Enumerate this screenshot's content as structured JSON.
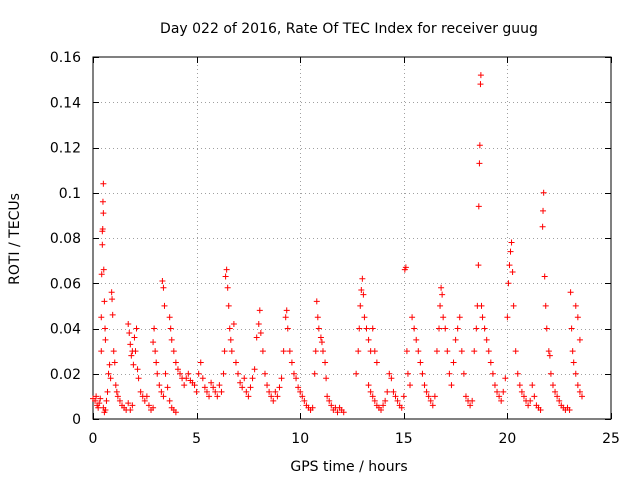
{
  "chart_data": {
    "type": "scatter",
    "title": "Day 022 of 2016, Rate Of TEC Index for receiver guug",
    "xlabel": "GPS time / hours",
    "ylabel": "ROTI / TECUs",
    "xlim": [
      0,
      25
    ],
    "ylim": [
      0,
      0.16
    ],
    "xticks": [
      0,
      5,
      10,
      15,
      20,
      25
    ],
    "xtick_labels": [
      "0",
      "5",
      "10",
      "15",
      "20",
      "25"
    ],
    "yticks": [
      0,
      0.02,
      0.04,
      0.06,
      0.08,
      0.1,
      0.12,
      0.14,
      0.16
    ],
    "ytick_labels": [
      "0",
      "0.02",
      "0.04",
      "0.06",
      "0.08",
      "0.1",
      "0.12",
      "0.14",
      "0.16"
    ],
    "grid": true,
    "marker": "+",
    "color": "#ff0000",
    "series": [
      {
        "name": "ROTI",
        "points": [
          [
            0.0,
            0.009
          ],
          [
            0.1,
            0.008
          ],
          [
            0.15,
            0.01
          ],
          [
            0.2,
            0.006
          ],
          [
            0.25,
            0.005
          ],
          [
            0.3,
            0.007
          ],
          [
            0.35,
            0.009
          ],
          [
            0.4,
            0.03
          ],
          [
            0.4,
            0.045
          ],
          [
            0.42,
            0.064
          ],
          [
            0.45,
            0.077
          ],
          [
            0.45,
            0.083
          ],
          [
            0.47,
            0.084
          ],
          [
            0.48,
            0.096
          ],
          [
            0.5,
            0.104
          ],
          [
            0.5,
            0.091
          ],
          [
            0.52,
            0.066
          ],
          [
            0.55,
            0.052
          ],
          [
            0.58,
            0.04
          ],
          [
            0.6,
            0.035
          ],
          [
            0.5,
            0.005
          ],
          [
            0.55,
            0.003
          ],
          [
            0.6,
            0.004
          ],
          [
            0.65,
            0.008
          ],
          [
            0.7,
            0.012
          ],
          [
            0.75,
            0.02
          ],
          [
            0.8,
            0.024
          ],
          [
            0.85,
            0.018
          ],
          [
            0.9,
            0.056
          ],
          [
            0.92,
            0.053
          ],
          [
            0.95,
            0.046
          ],
          [
            1.0,
            0.03
          ],
          [
            1.05,
            0.025
          ],
          [
            1.1,
            0.015
          ],
          [
            1.15,
            0.012
          ],
          [
            1.2,
            0.01
          ],
          [
            1.3,
            0.008
          ],
          [
            1.4,
            0.006
          ],
          [
            1.5,
            0.005
          ],
          [
            1.6,
            0.004
          ],
          [
            1.7,
            0.007
          ],
          [
            1.8,
            0.004
          ],
          [
            1.9,
            0.006
          ],
          [
            1.7,
            0.042
          ],
          [
            1.75,
            0.038
          ],
          [
            1.8,
            0.033
          ],
          [
            1.85,
            0.028
          ],
          [
            1.9,
            0.03
          ],
          [
            1.95,
            0.024
          ],
          [
            2.0,
            0.036
          ],
          [
            2.05,
            0.03
          ],
          [
            2.1,
            0.04
          ],
          [
            2.15,
            0.022
          ],
          [
            2.2,
            0.018
          ],
          [
            2.3,
            0.012
          ],
          [
            2.4,
            0.01
          ],
          [
            2.5,
            0.008
          ],
          [
            2.6,
            0.01
          ],
          [
            2.7,
            0.006
          ],
          [
            2.8,
            0.004
          ],
          [
            2.9,
            0.005
          ],
          [
            2.9,
            0.034
          ],
          [
            2.95,
            0.04
          ],
          [
            3.0,
            0.03
          ],
          [
            3.05,
            0.025
          ],
          [
            3.1,
            0.02
          ],
          [
            3.2,
            0.015
          ],
          [
            3.3,
            0.012
          ],
          [
            3.4,
            0.01
          ],
          [
            3.35,
            0.061
          ],
          [
            3.4,
            0.058
          ],
          [
            3.45,
            0.05
          ],
          [
            3.5,
            0.02
          ],
          [
            3.6,
            0.014
          ],
          [
            3.7,
            0.008
          ],
          [
            3.8,
            0.005
          ],
          [
            3.9,
            0.004
          ],
          [
            4.0,
            0.003
          ],
          [
            3.7,
            0.045
          ],
          [
            3.75,
            0.04
          ],
          [
            3.8,
            0.035
          ],
          [
            3.9,
            0.03
          ],
          [
            4.0,
            0.025
          ],
          [
            4.1,
            0.022
          ],
          [
            4.2,
            0.02
          ],
          [
            4.3,
            0.018
          ],
          [
            4.4,
            0.015
          ],
          [
            4.5,
            0.018
          ],
          [
            4.6,
            0.02
          ],
          [
            4.7,
            0.017
          ],
          [
            4.8,
            0.016
          ],
          [
            4.9,
            0.015
          ],
          [
            5.0,
            0.012
          ],
          [
            5.1,
            0.02
          ],
          [
            5.2,
            0.025
          ],
          [
            5.3,
            0.018
          ],
          [
            5.4,
            0.014
          ],
          [
            5.5,
            0.012
          ],
          [
            5.6,
            0.01
          ],
          [
            5.7,
            0.016
          ],
          [
            5.8,
            0.014
          ],
          [
            5.9,
            0.012
          ],
          [
            6.0,
            0.01
          ],
          [
            6.1,
            0.015
          ],
          [
            6.2,
            0.012
          ],
          [
            6.3,
            0.02
          ],
          [
            6.35,
            0.03
          ],
          [
            6.4,
            0.063
          ],
          [
            6.45,
            0.066
          ],
          [
            6.5,
            0.058
          ],
          [
            6.55,
            0.05
          ],
          [
            6.6,
            0.04
          ],
          [
            6.65,
            0.035
          ],
          [
            6.7,
            0.03
          ],
          [
            6.8,
            0.042
          ],
          [
            6.9,
            0.025
          ],
          [
            7.0,
            0.02
          ],
          [
            7.1,
            0.016
          ],
          [
            7.2,
            0.014
          ],
          [
            7.3,
            0.018
          ],
          [
            7.4,
            0.012
          ],
          [
            7.5,
            0.01
          ],
          [
            7.6,
            0.014
          ],
          [
            7.7,
            0.018
          ],
          [
            7.8,
            0.022
          ],
          [
            7.9,
            0.036
          ],
          [
            8.0,
            0.042
          ],
          [
            8.05,
            0.048
          ],
          [
            8.1,
            0.038
          ],
          [
            8.2,
            0.03
          ],
          [
            8.3,
            0.02
          ],
          [
            8.4,
            0.015
          ],
          [
            8.5,
            0.012
          ],
          [
            8.6,
            0.01
          ],
          [
            8.7,
            0.008
          ],
          [
            8.8,
            0.012
          ],
          [
            8.9,
            0.01
          ],
          [
            9.0,
            0.014
          ],
          [
            9.1,
            0.018
          ],
          [
            9.2,
            0.03
          ],
          [
            9.3,
            0.045
          ],
          [
            9.35,
            0.048
          ],
          [
            9.4,
            0.04
          ],
          [
            9.5,
            0.03
          ],
          [
            9.6,
            0.025
          ],
          [
            9.7,
            0.02
          ],
          [
            9.8,
            0.018
          ],
          [
            9.9,
            0.014
          ],
          [
            10.0,
            0.012
          ],
          [
            10.1,
            0.01
          ],
          [
            10.2,
            0.008
          ],
          [
            10.3,
            0.006
          ],
          [
            10.4,
            0.005
          ],
          [
            10.5,
            0.004
          ],
          [
            10.6,
            0.005
          ],
          [
            10.7,
            0.02
          ],
          [
            10.75,
            0.03
          ],
          [
            10.8,
            0.052
          ],
          [
            10.85,
            0.045
          ],
          [
            10.9,
            0.04
          ],
          [
            11.0,
            0.036
          ],
          [
            11.05,
            0.034
          ],
          [
            11.1,
            0.03
          ],
          [
            11.2,
            0.025
          ],
          [
            11.25,
            0.018
          ],
          [
            11.3,
            0.01
          ],
          [
            11.4,
            0.008
          ],
          [
            11.5,
            0.006
          ],
          [
            11.6,
            0.004
          ],
          [
            11.7,
            0.005
          ],
          [
            11.8,
            0.003
          ],
          [
            11.9,
            0.005
          ],
          [
            12.0,
            0.004
          ],
          [
            12.1,
            0.003
          ],
          [
            12.7,
            0.02
          ],
          [
            12.8,
            0.03
          ],
          [
            12.85,
            0.04
          ],
          [
            12.9,
            0.05
          ],
          [
            12.95,
            0.057
          ],
          [
            13.0,
            0.062
          ],
          [
            13.05,
            0.055
          ],
          [
            13.1,
            0.045
          ],
          [
            13.2,
            0.04
          ],
          [
            13.3,
            0.035
          ],
          [
            13.4,
            0.03
          ],
          [
            13.5,
            0.04
          ],
          [
            13.6,
            0.03
          ],
          [
            13.7,
            0.025
          ],
          [
            13.3,
            0.015
          ],
          [
            13.4,
            0.012
          ],
          [
            13.5,
            0.01
          ],
          [
            13.6,
            0.008
          ],
          [
            13.7,
            0.006
          ],
          [
            13.8,
            0.005
          ],
          [
            13.9,
            0.004
          ],
          [
            14.0,
            0.006
          ],
          [
            14.1,
            0.008
          ],
          [
            14.2,
            0.012
          ],
          [
            14.3,
            0.02
          ],
          [
            14.4,
            0.018
          ],
          [
            14.5,
            0.012
          ],
          [
            14.6,
            0.01
          ],
          [
            14.7,
            0.008
          ],
          [
            14.8,
            0.006
          ],
          [
            14.9,
            0.005
          ],
          [
            15.0,
            0.01
          ],
          [
            15.05,
            0.066
          ],
          [
            15.1,
            0.067
          ],
          [
            15.15,
            0.03
          ],
          [
            15.2,
            0.02
          ],
          [
            15.3,
            0.015
          ],
          [
            15.4,
            0.045
          ],
          [
            15.5,
            0.04
          ],
          [
            15.6,
            0.035
          ],
          [
            15.7,
            0.03
          ],
          [
            15.8,
            0.025
          ],
          [
            15.9,
            0.02
          ],
          [
            16.0,
            0.015
          ],
          [
            16.1,
            0.012
          ],
          [
            16.2,
            0.01
          ],
          [
            16.3,
            0.008
          ],
          [
            16.4,
            0.006
          ],
          [
            16.5,
            0.01
          ],
          [
            16.6,
            0.03
          ],
          [
            16.7,
            0.04
          ],
          [
            16.75,
            0.05
          ],
          [
            16.8,
            0.058
          ],
          [
            16.85,
            0.055
          ],
          [
            16.9,
            0.045
          ],
          [
            17.0,
            0.04
          ],
          [
            17.1,
            0.03
          ],
          [
            17.2,
            0.02
          ],
          [
            17.3,
            0.015
          ],
          [
            17.4,
            0.025
          ],
          [
            17.5,
            0.035
          ],
          [
            17.6,
            0.04
          ],
          [
            17.7,
            0.045
          ],
          [
            17.8,
            0.03
          ],
          [
            17.9,
            0.02
          ],
          [
            18.0,
            0.01
          ],
          [
            18.1,
            0.008
          ],
          [
            18.2,
            0.006
          ],
          [
            18.3,
            0.008
          ],
          [
            18.4,
            0.03
          ],
          [
            18.5,
            0.04
          ],
          [
            18.55,
            0.05
          ],
          [
            18.6,
            0.068
          ],
          [
            18.62,
            0.094
          ],
          [
            18.65,
            0.113
          ],
          [
            18.67,
            0.121
          ],
          [
            18.7,
            0.148
          ],
          [
            18.72,
            0.152
          ],
          [
            18.75,
            0.05
          ],
          [
            18.8,
            0.045
          ],
          [
            18.9,
            0.04
          ],
          [
            19.0,
            0.035
          ],
          [
            19.1,
            0.03
          ],
          [
            19.2,
            0.025
          ],
          [
            19.3,
            0.02
          ],
          [
            19.4,
            0.015
          ],
          [
            19.5,
            0.012
          ],
          [
            19.6,
            0.01
          ],
          [
            19.7,
            0.008
          ],
          [
            19.8,
            0.012
          ],
          [
            19.9,
            0.018
          ],
          [
            20.0,
            0.045
          ],
          [
            20.05,
            0.06
          ],
          [
            20.1,
            0.068
          ],
          [
            20.15,
            0.074
          ],
          [
            20.2,
            0.078
          ],
          [
            20.25,
            0.065
          ],
          [
            20.3,
            0.05
          ],
          [
            20.4,
            0.03
          ],
          [
            20.5,
            0.02
          ],
          [
            20.6,
            0.015
          ],
          [
            20.7,
            0.012
          ],
          [
            20.8,
            0.01
          ],
          [
            20.9,
            0.008
          ],
          [
            21.0,
            0.006
          ],
          [
            21.1,
            0.008
          ],
          [
            21.2,
            0.015
          ],
          [
            21.3,
            0.01
          ],
          [
            21.4,
            0.006
          ],
          [
            21.5,
            0.005
          ],
          [
            21.6,
            0.004
          ],
          [
            21.7,
            0.085
          ],
          [
            21.72,
            0.092
          ],
          [
            21.75,
            0.1
          ],
          [
            21.8,
            0.063
          ],
          [
            21.85,
            0.05
          ],
          [
            21.9,
            0.04
          ],
          [
            22.0,
            0.03
          ],
          [
            22.05,
            0.028
          ],
          [
            22.1,
            0.02
          ],
          [
            22.2,
            0.015
          ],
          [
            22.3,
            0.012
          ],
          [
            22.4,
            0.01
          ],
          [
            22.5,
            0.008
          ],
          [
            22.6,
            0.006
          ],
          [
            22.7,
            0.005
          ],
          [
            22.8,
            0.004
          ],
          [
            22.9,
            0.005
          ],
          [
            23.0,
            0.004
          ],
          [
            23.05,
            0.056
          ],
          [
            23.1,
            0.04
          ],
          [
            23.15,
            0.03
          ],
          [
            23.2,
            0.025
          ],
          [
            23.3,
            0.02
          ],
          [
            23.4,
            0.015
          ],
          [
            23.5,
            0.012
          ],
          [
            23.6,
            0.01
          ],
          [
            23.3,
            0.05
          ],
          [
            23.4,
            0.045
          ],
          [
            23.5,
            0.035
          ]
        ]
      }
    ]
  }
}
